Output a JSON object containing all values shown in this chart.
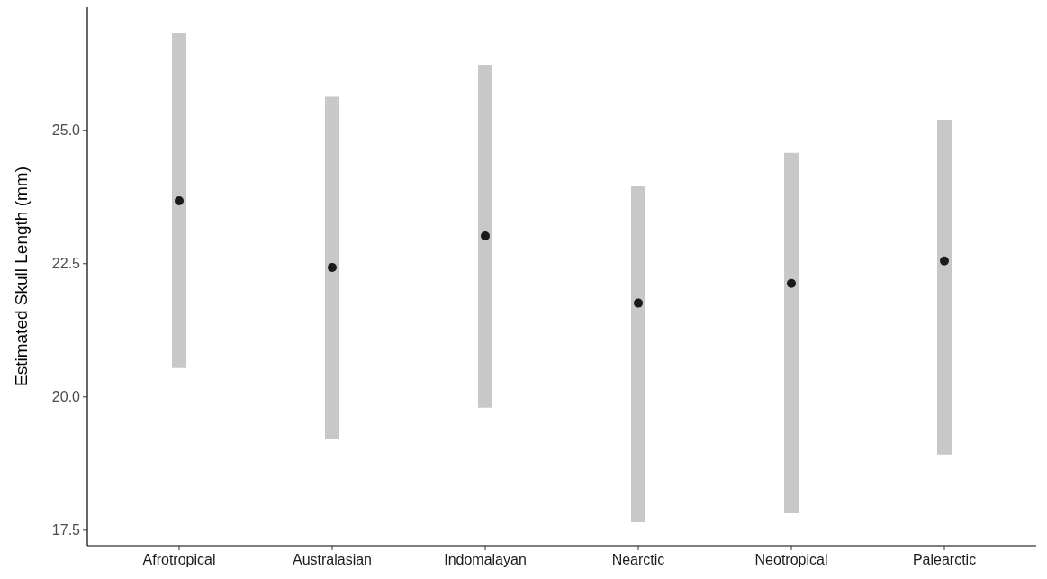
{
  "chart_data": {
    "type": "scatter",
    "ylabel": "Estimated Skull Length (mm)",
    "categories": [
      "Afrotropical",
      "Australasian",
      "Indomalayan",
      "Nearctic",
      "Neotropical",
      "Palearctic"
    ],
    "series": [
      {
        "color": "#1a1a1a",
        "values": [
          23.68,
          22.43,
          23.02,
          21.76,
          22.13,
          22.55
        ],
        "errors": [
          [
            20.54,
            26.82
          ],
          [
            19.22,
            25.63
          ],
          [
            19.8,
            26.23
          ],
          [
            17.65,
            23.95
          ],
          [
            17.82,
            24.58
          ],
          [
            18.92,
            25.2
          ]
        ]
      }
    ],
    "ylim": [
      17.21,
      27.31
    ],
    "yticks": [
      {
        "value": 17.5,
        "label": "17.5"
      },
      {
        "value": 20,
        "label": "20.0"
      },
      {
        "value": 22.5,
        "label": "22.5"
      },
      {
        "value": 25,
        "label": "25.0"
      }
    ],
    "grid": false,
    "marker": "circle"
  }
}
